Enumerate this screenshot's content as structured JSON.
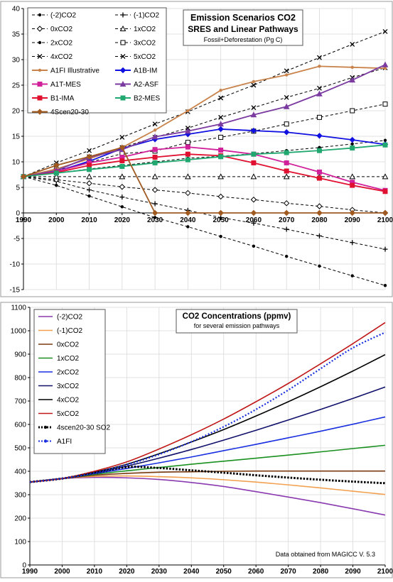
{
  "chart_data": [
    {
      "type": "line",
      "title": "Emission Scenarios CO2",
      "subtitle": "SRES and Linear Pathways",
      "note": "Fossil+Deforestation      (Pg C)",
      "xlabel": "",
      "ylabel": "",
      "x": [
        1990,
        2000,
        2010,
        2020,
        2030,
        2040,
        2050,
        2060,
        2070,
        2080,
        2090,
        2100
      ],
      "xlim": [
        1990,
        2100
      ],
      "ylim": [
        -15,
        40
      ],
      "yticks": [
        -15,
        -10,
        -5,
        0,
        5,
        10,
        15,
        20,
        25,
        30,
        35,
        40
      ],
      "grid": true,
      "legend_position": "top-left",
      "series": [
        {
          "name": "(-2)CO2",
          "color": "#000000",
          "dash": "4,3",
          "marker": "dot",
          "values": [
            7.1,
            5.4,
            3.3,
            1.2,
            -0.9,
            -2.7,
            -4.6,
            -6.5,
            -8.5,
            -10.4,
            -12.3,
            -14.2
          ]
        },
        {
          "name": "(-1)CO2",
          "color": "#000000",
          "dash": "4,3",
          "marker": "plus",
          "values": [
            7.1,
            6.2,
            4.5,
            3.1,
            1.8,
            0.5,
            -0.9,
            -2.0,
            -3.2,
            -4.5,
            -5.8,
            -7.1
          ]
        },
        {
          "name": "0xCO2",
          "color": "#000000",
          "dash": "4,3",
          "marker": "diamond",
          "values": [
            7.1,
            6.5,
            5.8,
            5.1,
            4.5,
            3.9,
            3.2,
            2.6,
            1.9,
            1.3,
            0.6,
            0
          ]
        },
        {
          "name": "1xCO2",
          "color": "#000000",
          "dash": "4,3",
          "marker": "triangle",
          "values": [
            7.1,
            7.1,
            7.1,
            7.1,
            7.1,
            7.1,
            7.1,
            7.1,
            7.1,
            7.1,
            7.1,
            7.1
          ]
        },
        {
          "name": "2xCO2",
          "color": "#000000",
          "dash": "4,3",
          "marker": "dot",
          "values": [
            7.1,
            7.8,
            8.6,
            9.3,
            10.0,
            10.7,
            11.1,
            11.6,
            12.2,
            12.8,
            13.5,
            14.2
          ]
        },
        {
          "name": "3xCO2",
          "color": "#000000",
          "dash": "4,3",
          "marker": "square",
          "values": [
            7.1,
            8.3,
            9.9,
            11.6,
            12.1,
            13.8,
            14.8,
            16.0,
            17.4,
            18.7,
            20.0,
            21.3
          ]
        },
        {
          "name": "4xCO2",
          "color": "#000000",
          "dash": "4,3",
          "marker": "cross",
          "values": [
            7.1,
            9.3,
            11.0,
            12.8,
            14.8,
            16.6,
            18.7,
            20.6,
            22.6,
            24.4,
            26.5,
            28.4
          ]
        },
        {
          "name": "5xCO2",
          "color": "#000000",
          "dash": "4,3",
          "marker": "cross",
          "values": [
            7.1,
            9.8,
            12.2,
            14.8,
            17.4,
            19.8,
            22.5,
            25.0,
            27.8,
            30.4,
            33.0,
            35.5
          ]
        },
        {
          "name": "A1FI Illustrative",
          "color": "#c8824a",
          "dash": "",
          "marker": "dot",
          "values": [
            7.1,
            8.6,
            10.6,
            12.8,
            16.2,
            20.0,
            24.0,
            25.7,
            27.0,
            28.7,
            28.5,
            28.3
          ]
        },
        {
          "name": "A1B-IM",
          "color": "#1010e0",
          "dash": "",
          "marker": "diamond",
          "values": [
            7.1,
            8.1,
            10.1,
            12.6,
            14.4,
            15.4,
            16.4,
            16.1,
            15.8,
            15.1,
            14.3,
            13.4
          ]
        },
        {
          "name": "A1T-MES",
          "color": "#d0209a",
          "dash": "",
          "marker": "square",
          "values": [
            7.1,
            8.1,
            9.8,
            10.9,
            12.4,
            12.9,
            12.3,
            11.5,
            9.8,
            8.0,
            6.0,
            4.4
          ]
        },
        {
          "name": "A2-ASF",
          "color": "#7a3aa0",
          "dash": "",
          "marker": "triangle",
          "values": [
            7.1,
            8.3,
            10.9,
            12.4,
            14.9,
            16.0,
            17.4,
            19.2,
            20.8,
            23.3,
            26.0,
            29.0
          ]
        },
        {
          "name": "B1-IMA",
          "color": "#e01030",
          "dash": "",
          "marker": "square",
          "values": [
            7.1,
            7.9,
            9.3,
            10.2,
            10.9,
            11.5,
            11.2,
            9.8,
            8.2,
            6.8,
            5.4,
            4.2
          ]
        },
        {
          "name": "B2-MES",
          "color": "#20a870",
          "dash": "",
          "marker": "square",
          "values": [
            7.1,
            7.8,
            8.5,
            9.1,
            9.8,
            10.4,
            11.0,
            11.5,
            11.8,
            12.2,
            12.7,
            13.3
          ]
        },
        {
          "name": "4Scen20-30",
          "color": "#a05a20",
          "dash": "",
          "marker": "diamond",
          "values": [
            7.1,
            9.3,
            11.0,
            12.8,
            0,
            0,
            0,
            0,
            0,
            0,
            0,
            0
          ]
        }
      ]
    },
    {
      "type": "line",
      "title": "CO2 Concentrations  (ppmv)",
      "subtitle": "for several emission pathways",
      "note": "Data obtained from MAGICC V. 5.3",
      "xlabel": "",
      "ylabel": "",
      "x": [
        1990,
        2000,
        2010,
        2020,
        2030,
        2040,
        2050,
        2060,
        2070,
        2080,
        2090,
        2100
      ],
      "xlim": [
        1990,
        2100
      ],
      "ylim": [
        0,
        1100
      ],
      "yticks": [
        0,
        100,
        200,
        300,
        400,
        500,
        600,
        700,
        800,
        900,
        1000,
        1100
      ],
      "grid": true,
      "legend_position": "top-left",
      "series": [
        {
          "name": "(-2)CO2",
          "color": "#8a3ab0",
          "style": "solid",
          "values": [
            354,
            369,
            374,
            372,
            365,
            352,
            335,
            313,
            290,
            266,
            240,
            213
          ]
        },
        {
          "name": "(-1)CO2",
          "color": "#f2a050",
          "style": "solid",
          "values": [
            354,
            369,
            378,
            380,
            377,
            372,
            364,
            354,
            342,
            329,
            315,
            301
          ]
        },
        {
          "name": "0xCO2",
          "color": "#7a3a10",
          "style": "solid",
          "values": [
            354,
            369,
            383,
            391,
            396,
            398,
            400,
            401,
            401,
            401,
            401,
            401
          ]
        },
        {
          "name": "1xCO2",
          "color": "#1a9020",
          "style": "solid",
          "values": [
            354,
            369,
            387,
            402,
            416,
            430,
            443,
            456,
            469,
            483,
            497,
            511
          ]
        },
        {
          "name": "2xCO2",
          "color": "#1a30e0",
          "style": "solid",
          "values": [
            354,
            369,
            390,
            412,
            436,
            461,
            488,
            515,
            543,
            571,
            601,
            632
          ]
        },
        {
          "name": "3xCO2",
          "color": "#10106a",
          "style": "solid",
          "values": [
            354,
            369,
            393,
            422,
            456,
            493,
            533,
            575,
            619,
            664,
            711,
            760
          ]
        },
        {
          "name": "4xCO2",
          "color": "#000000",
          "style": "solid",
          "values": [
            354,
            369,
            396,
            430,
            475,
            525,
            578,
            636,
            697,
            761,
            828,
            898
          ]
        },
        {
          "name": "5xCO2",
          "color": "#c01818",
          "style": "solid",
          "values": [
            354,
            369,
            400,
            440,
            495,
            556,
            623,
            697,
            775,
            859,
            945,
            1035
          ]
        },
        {
          "name": "4scen20-30 SO2",
          "color": "#000000",
          "style": "dotted-thick",
          "values": [
            354,
            369,
            393,
            418,
            414,
            404,
            394,
            383,
            373,
            364,
            356,
            349
          ]
        },
        {
          "name": "A1FI",
          "color": "#1a30e0",
          "style": "dotted",
          "values": [
            354,
            369,
            393,
            428,
            472,
            526,
            590,
            664,
            747,
            838,
            927,
            993
          ]
        }
      ]
    }
  ]
}
